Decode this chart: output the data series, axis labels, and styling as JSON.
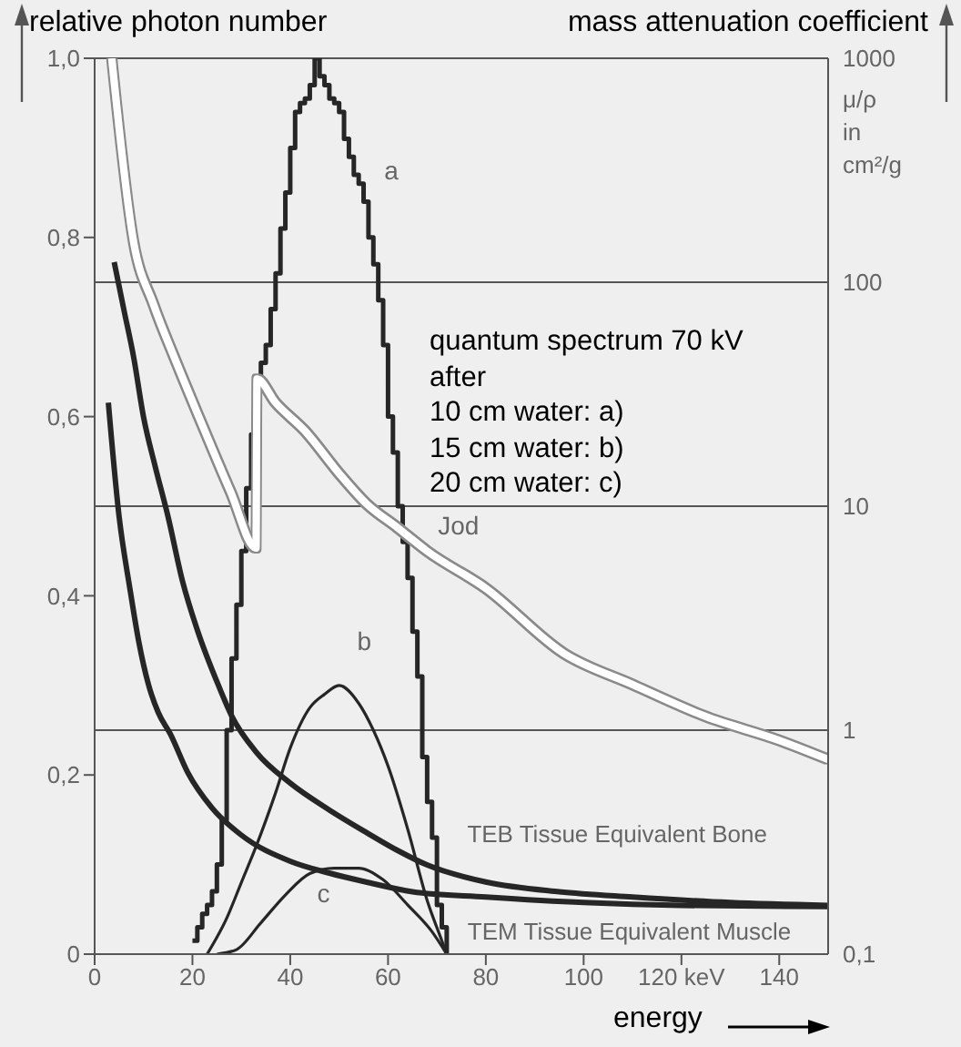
{
  "chart_data": {
    "type": "line",
    "ylabel": "relative photon number",
    "y2label": "mass attenuation coefficient",
    "xlabel": "energy",
    "annotations": [
      "quantum spectrum 70 kV",
      "after",
      "10 cm water: a)",
      "15 cm water: b)",
      "20 cm water: c)",
      "μ/ρ in cm²/g"
    ],
    "xlim": [
      0,
      150
    ],
    "xticks": [
      0,
      20,
      40,
      60,
      80,
      100,
      {
        "value": 120,
        "label": "120 keV"
      },
      140
    ],
    "ylim": [
      0,
      1
    ],
    "yticks": [
      0,
      {
        "value": 0.2,
        "label": "0,2"
      },
      {
        "value": 0.4,
        "label": "0,4"
      },
      {
        "value": 0.6,
        "label": "0,6"
      },
      {
        "value": 0.8,
        "label": "0,8"
      },
      {
        "value": 1,
        "label": "1,0"
      }
    ],
    "y2lim": [
      0.1,
      1000
    ],
    "y2ticks": [
      {
        "value": 0.1,
        "label": "0,1"
      },
      1,
      10,
      100,
      1000
    ],
    "log": "y2",
    "grid": true,
    "marker": "none",
    "series": [
      {
        "name": "a",
        "type": "step",
        "color": "#262626",
        "x": [
          20,
          21,
          22,
          23,
          24,
          25,
          26,
          27,
          28,
          29,
          30,
          31,
          32,
          33,
          34,
          35,
          36,
          37,
          38,
          39,
          40,
          41,
          42,
          43,
          44,
          45,
          46,
          47,
          48,
          49,
          50,
          51,
          52,
          53,
          54,
          55,
          56,
          57,
          58,
          59,
          60,
          61,
          62,
          63,
          64,
          65,
          66,
          67,
          68,
          69,
          70,
          71,
          72
        ],
        "values": [
          0.015,
          0.03,
          0.045,
          0.055,
          0.07,
          0.1,
          0.15,
          0.25,
          0.33,
          0.39,
          0.45,
          0.52,
          0.58,
          0.64,
          0.66,
          0.68,
          0.72,
          0.76,
          0.81,
          0.85,
          0.9,
          0.94,
          0.95,
          0.955,
          0.97,
          1,
          0.98,
          0.97,
          0.955,
          0.95,
          0.94,
          0.91,
          0.89,
          0.87,
          0.86,
          0.84,
          0.8,
          0.77,
          0.73,
          0.68,
          0.6,
          0.56,
          0.5,
          0.46,
          0.42,
          0.36,
          0.31,
          0.22,
          0.17,
          0.13,
          0.055,
          0.03,
          0
        ]
      },
      {
        "name": "b",
        "type": "line",
        "color": "#262626",
        "x": [
          23,
          27,
          30,
          33,
          37,
          40,
          44,
          47,
          50,
          54,
          57,
          60,
          64,
          68,
          71,
          72
        ],
        "values": [
          0,
          0.04,
          0.08,
          0.12,
          0.18,
          0.23,
          0.275,
          0.29,
          0.3,
          0.28,
          0.25,
          0.21,
          0.14,
          0.06,
          0.015,
          0
        ]
      },
      {
        "name": "c",
        "type": "line",
        "color": "#262626",
        "x": [
          25,
          29,
          34,
          39,
          44,
          49,
          54,
          59,
          64,
          69,
          72
        ],
        "values": [
          0,
          0.005,
          0.035,
          0.066,
          0.09,
          0.096,
          0.096,
          0.083,
          0.055,
          0.025,
          0
        ]
      },
      {
        "name": "Jod",
        "type": "line",
        "axis": "y2",
        "color": "#ffffff",
        "x": [
          3.5,
          8,
          12,
          16.5,
          21.5,
          27.8,
          33,
          33.2,
          37,
          43,
          50,
          55.5,
          62,
          68,
          80,
          96,
          110,
          125,
          140,
          150
        ],
        "values": [
          1000,
          150,
          80,
          45,
          24.5,
          11.6,
          6.5,
          37,
          29,
          21.7,
          14,
          10.3,
          8,
          6.3,
          4.3,
          2.2,
          1.6,
          1.15,
          0.9,
          0.74
        ]
      },
      {
        "name": "TEB Tissue Equivalent Bone",
        "type": "line",
        "axis": "y2",
        "color": "#262626",
        "x": [
          4,
          6,
          8,
          10,
          12.4,
          15,
          18,
          21,
          25.5,
          28,
          33,
          40,
          48,
          55.5,
          62,
          68,
          80,
          95,
          110,
          130,
          150
        ],
        "values": [
          123,
          75,
          46,
          25,
          15,
          9,
          4.6,
          2.8,
          1.55,
          1.16,
          0.8,
          0.58,
          0.44,
          0.35,
          0.29,
          0.25,
          0.21,
          0.19,
          0.18,
          0.17,
          0.165
        ]
      },
      {
        "name": "TEM Tissue Equivalent Muscle",
        "type": "line",
        "axis": "y2",
        "color": "#262626",
        "x": [
          2.8,
          5,
          7.2,
          9,
          11,
          13,
          15.5,
          19,
          24,
          30,
          40,
          48,
          55.5,
          65,
          80,
          100,
          120,
          150
        ],
        "values": [
          29,
          9,
          4.3,
          2.5,
          1.6,
          1.2,
          0.96,
          0.65,
          0.45,
          0.34,
          0.26,
          0.23,
          0.21,
          0.19,
          0.18,
          0.17,
          0.165,
          0.163
        ]
      }
    ]
  }
}
